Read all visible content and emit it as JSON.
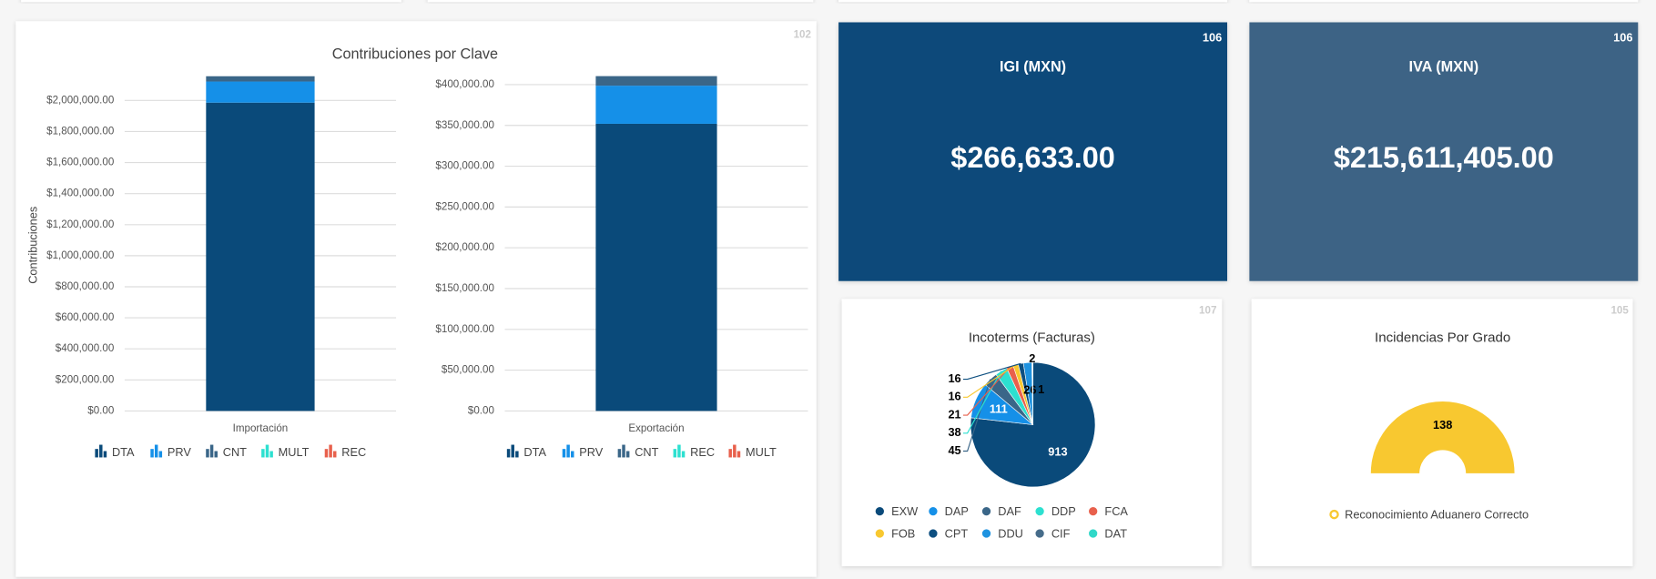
{
  "cards": [
    {
      "badge": "102"
    },
    {
      "badge": "106",
      "title": "IGI (MXN)",
      "value": "$266,633.00"
    },
    {
      "badge": "106",
      "title": "IVA (MXN)",
      "value": "$215,611,405.00"
    },
    {
      "badge": "107"
    },
    {
      "badge": "105"
    }
  ],
  "chart_data": [
    {
      "type": "stacked_bar",
      "title": "Contribuciones por Clave",
      "y_label": "Contribuciones",
      "categories": [
        "Importación"
      ],
      "series": [
        {
          "name": "DTA",
          "color": "#0a4a7a",
          "values": [
            1986000
          ]
        },
        {
          "name": "PRV",
          "color": "#1590e8",
          "values": [
            136000
          ]
        },
        {
          "name": "CNT",
          "color": "#3a6688",
          "values": [
            34000
          ]
        },
        {
          "name": "MULT",
          "color": "#2de0d0",
          "values": [
            0
          ]
        },
        {
          "name": "REC",
          "color": "#e8604c",
          "values": [
            0
          ]
        }
      ],
      "ylim": [
        0,
        2200000
      ],
      "yticks": [
        {
          "value": 0,
          "label": "$0.00"
        },
        {
          "value": 200000,
          "label": "$200,000.00"
        },
        {
          "value": 400000,
          "label": "$400,000.00"
        },
        {
          "value": 600000,
          "label": "$600,000.00"
        },
        {
          "value": 800000,
          "label": "$800,000.00"
        },
        {
          "value": 1000000,
          "label": "$1,000,000.00"
        },
        {
          "value": 1200000,
          "label": "$1,200,000.00"
        },
        {
          "value": 1400000,
          "label": "$1,400,000.00"
        },
        {
          "value": 1600000,
          "label": "$1,600,000.00"
        },
        {
          "value": 1800000,
          "label": "$1,800,000.00"
        },
        {
          "value": 2000000,
          "label": "$2,000,000.00"
        }
      ],
      "grid": true
    },
    {
      "type": "stacked_bar",
      "categories": [
        "Exportación"
      ],
      "series": [
        {
          "name": "DTA",
          "color": "#0a4a7a",
          "values": [
            352000
          ]
        },
        {
          "name": "PRV",
          "color": "#1590e8",
          "values": [
            46700
          ]
        },
        {
          "name": "CNT",
          "color": "#3a6688",
          "values": [
            11700
          ]
        },
        {
          "name": "REC",
          "color": "#2de0d0",
          "values": [
            0
          ]
        },
        {
          "name": "MULT",
          "color": "#e8604c",
          "values": [
            0
          ]
        }
      ],
      "ylim": [
        0,
        420000
      ],
      "yticks": [
        {
          "value": 0,
          "label": "$0.00"
        },
        {
          "value": 50000,
          "label": "$50,000.00"
        },
        {
          "value": 100000,
          "label": "$100,000.00"
        },
        {
          "value": 150000,
          "label": "$150,000.00"
        },
        {
          "value": 200000,
          "label": "$200,000.00"
        },
        {
          "value": 250000,
          "label": "$250,000.00"
        },
        {
          "value": 300000,
          "label": "$300,000.00"
        },
        {
          "value": 350000,
          "label": "$350,000.00"
        },
        {
          "value": 400000,
          "label": "$400,000.00"
        }
      ],
      "grid": true
    },
    {
      "type": "pie",
      "title": "Incoterms (Facturas)",
      "categories": [
        "EXW",
        "DAP",
        "DAF",
        "DDP",
        "FCA",
        "FOB",
        "CPT",
        "DDU",
        "CIF",
        "DAT"
      ],
      "values": [
        913,
        111,
        45,
        38,
        21,
        16,
        16,
        26,
        2,
        1
      ],
      "colors": [
        "#0a4a7a",
        "#1590e8",
        "#3a6688",
        "#2de0d0",
        "#e8604c",
        "#f8c830",
        "#0d4f80",
        "#1f93e0",
        "#466c8a",
        "#30d8c8"
      ]
    },
    {
      "type": "gauge",
      "title": "Incidencias Por Grado",
      "categories": [
        "Reconocimiento Aduanero Correcto"
      ],
      "values": [
        138
      ],
      "colors": [
        "#f8c830"
      ]
    }
  ]
}
